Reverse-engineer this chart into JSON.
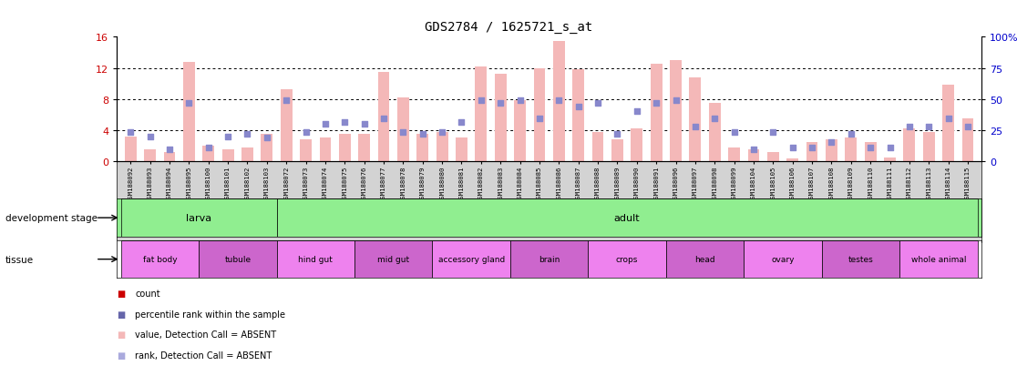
{
  "title": "GDS2784 / 1625721_s_at",
  "samples": [
    "GSM188092",
    "GSM188093",
    "GSM188094",
    "GSM188095",
    "GSM188100",
    "GSM188101",
    "GSM188102",
    "GSM188103",
    "GSM188072",
    "GSM188073",
    "GSM188074",
    "GSM188075",
    "GSM188076",
    "GSM188077",
    "GSM188078",
    "GSM188079",
    "GSM188080",
    "GSM188081",
    "GSM188082",
    "GSM188083",
    "GSM188084",
    "GSM188085",
    "GSM188086",
    "GSM188087",
    "GSM188088",
    "GSM188089",
    "GSM188090",
    "GSM188091",
    "GSM188096",
    "GSM188097",
    "GSM188098",
    "GSM188099",
    "GSM188104",
    "GSM188105",
    "GSM188106",
    "GSM188107",
    "GSM188108",
    "GSM188109",
    "GSM188110",
    "GSM188111",
    "GSM188112",
    "GSM188113",
    "GSM188114",
    "GSM188115"
  ],
  "bar_heights": [
    3.2,
    1.5,
    1.2,
    12.8,
    2.0,
    1.5,
    1.8,
    3.5,
    9.2,
    2.8,
    3.0,
    3.5,
    3.5,
    11.5,
    8.2,
    3.5,
    3.8,
    3.0,
    12.2,
    11.2,
    7.8,
    12.0,
    15.5,
    11.8,
    3.8,
    2.8,
    4.2,
    12.5,
    13.0,
    10.8,
    7.5,
    1.8,
    1.5,
    1.2,
    0.4,
    2.5,
    2.8,
    3.0,
    2.5,
    0.5,
    4.2,
    3.8,
    9.8,
    5.5
  ],
  "dot_heights": [
    3.8,
    3.2,
    1.5,
    7.5,
    1.8,
    3.2,
    3.5,
    3.0,
    7.8,
    3.8,
    4.8,
    5.0,
    4.8,
    5.5,
    3.8,
    3.5,
    3.8,
    5.0,
    7.8,
    7.5,
    7.8,
    5.5,
    7.8,
    7.0,
    7.5,
    3.5,
    6.5,
    7.5,
    7.8,
    4.5,
    5.5,
    3.8,
    1.5,
    3.8,
    1.8,
    1.8,
    2.5,
    3.5,
    1.8,
    1.8,
    4.5,
    4.5,
    5.5,
    4.5
  ],
  "dot_color": "#8888cc",
  "dot_color_absent": "#aaaadd",
  "bar_color": "#f4b8b8",
  "ylim_left": [
    0,
    16
  ],
  "ylim_right": [
    0,
    100
  ],
  "yticks_left": [
    0,
    4,
    8,
    12,
    16
  ],
  "yticks_right": [
    0,
    25,
    50,
    75,
    100
  ],
  "ytick_labels_right": [
    "0",
    "25",
    "50",
    "75",
    "100%"
  ],
  "left_color": "#cc0000",
  "right_color": "#0000cc",
  "dev_groups": [
    {
      "label": "larva",
      "start": 0,
      "end": 7
    },
    {
      "label": "adult",
      "start": 8,
      "end": 43
    }
  ],
  "tissue_groups": [
    {
      "label": "fat body",
      "start": 0,
      "end": 3
    },
    {
      "label": "tubule",
      "start": 4,
      "end": 7
    },
    {
      "label": "hind gut",
      "start": 8,
      "end": 11
    },
    {
      "label": "mid gut",
      "start": 12,
      "end": 15
    },
    {
      "label": "accessory gland",
      "start": 16,
      "end": 19
    },
    {
      "label": "brain",
      "start": 20,
      "end": 23
    },
    {
      "label": "crops",
      "start": 24,
      "end": 27
    },
    {
      "label": "head",
      "start": 28,
      "end": 31
    },
    {
      "label": "ovary",
      "start": 32,
      "end": 35
    },
    {
      "label": "testes",
      "start": 36,
      "end": 39
    },
    {
      "label": "whole animal",
      "start": 40,
      "end": 43
    }
  ],
  "dev_color": "#90ee90",
  "tissue_color_even": "#ee82ee",
  "tissue_color_odd": "#cc66cc",
  "legend_items": [
    {
      "color": "#cc0000",
      "label": "count"
    },
    {
      "color": "#6666aa",
      "label": "percentile rank within the sample"
    },
    {
      "color": "#f4b8b8",
      "label": "value, Detection Call = ABSENT"
    },
    {
      "color": "#aaaadd",
      "label": "rank, Detection Call = ABSENT"
    }
  ]
}
